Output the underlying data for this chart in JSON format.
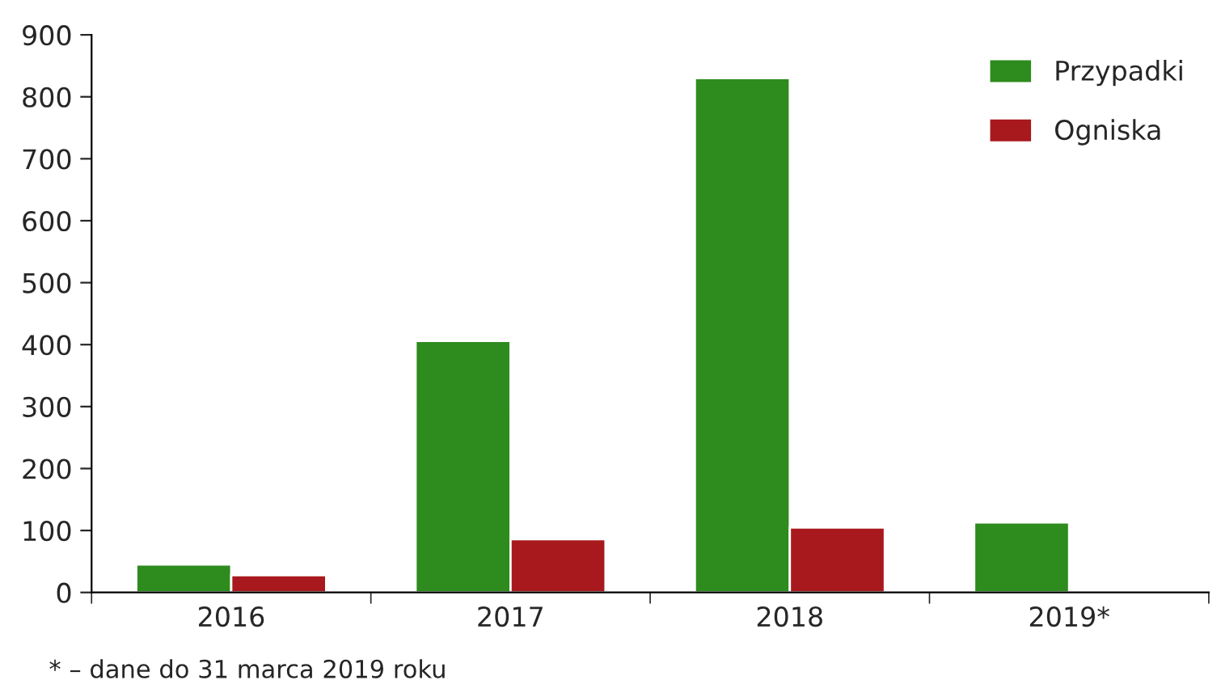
{
  "chart_data": {
    "type": "bar",
    "categories": [
      "2016",
      "2017",
      "2018",
      "2019*"
    ],
    "series": [
      {
        "name": "Przypadki",
        "color": "#2e8b1e",
        "values": [
          45,
          406,
          830,
          113
        ]
      },
      {
        "name": "Ogniska",
        "color": "#a8191e",
        "values": [
          28,
          86,
          105,
          null
        ]
      }
    ],
    "ylim": [
      0,
      900
    ],
    "yticks": [
      0,
      100,
      200,
      300,
      400,
      500,
      600,
      700,
      800,
      900
    ],
    "grid": false,
    "legend": "top right",
    "annotations": [
      "* – dane do 31 marca 2019 roku"
    ]
  }
}
